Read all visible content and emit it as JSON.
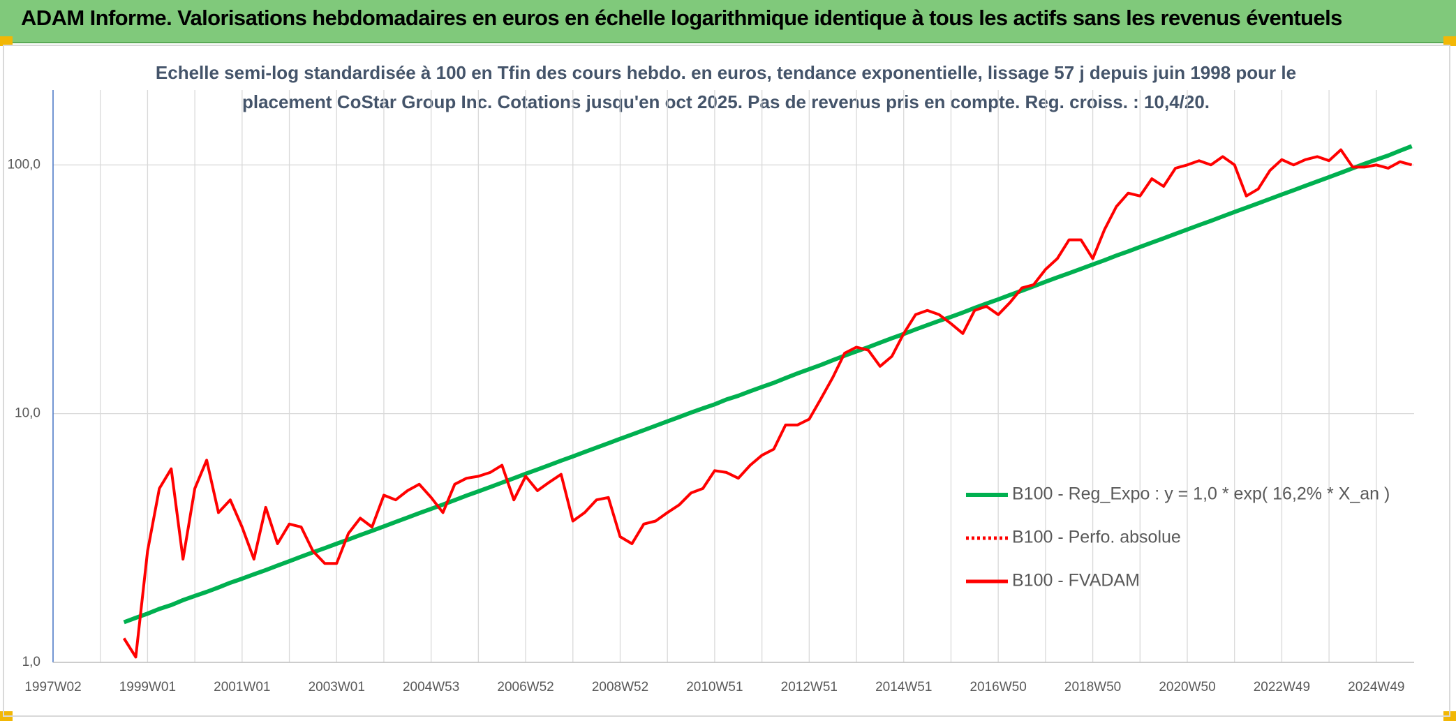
{
  "header": {
    "title": "ADAM Informe. Valorisations hebdomadaires en euros en échelle logarithmique identique à tous les actifs sans les revenus éventuels"
  },
  "chart_data": {
    "type": "line",
    "title": [
      "Echelle semi-log standardisée à 100 en Tfin des cours hebdo. en euros, tendance exponentielle, lissage 57 j depuis juin 1998 pour le",
      "placement CoStar Group Inc. Cotations jusqu'en oct 2025. Pas de revenus pris en compte. Reg. croiss. : 10,4/20."
    ],
    "log_y": true,
    "grid": true,
    "legend": "right",
    "ylim": [
      1,
      200
    ],
    "yticks": [
      {
        "value": 1,
        "label": "1,0"
      },
      {
        "value": 10,
        "label": "10,0"
      },
      {
        "value": 100,
        "label": "100,0"
      }
    ],
    "categories": [
      "1997W02",
      null,
      null,
      null,
      null,
      null,
      null,
      null,
      "1999W01",
      null,
      null,
      null,
      null,
      null,
      null,
      null,
      "2001W01",
      null,
      null,
      null,
      null,
      null,
      null,
      null,
      "2003W01",
      null,
      null,
      null,
      null,
      null,
      null,
      null,
      "2004W53",
      null,
      null,
      null,
      null,
      null,
      null,
      null,
      "2006W52",
      null,
      null,
      null,
      null,
      null,
      null,
      null,
      "2008W52",
      null,
      null,
      null,
      null,
      null,
      null,
      null,
      "2010W51",
      null,
      null,
      null,
      null,
      null,
      null,
      null,
      "2012W51",
      null,
      null,
      null,
      null,
      null,
      null,
      null,
      "2014W51",
      null,
      null,
      null,
      null,
      null,
      null,
      null,
      "2016W50",
      null,
      null,
      null,
      null,
      null,
      null,
      null,
      "2018W50",
      null,
      null,
      null,
      null,
      null,
      null,
      null,
      "2020W50",
      null,
      null,
      null,
      null,
      null,
      null,
      null,
      "2022W49",
      null,
      null,
      null,
      null,
      null,
      null,
      null,
      "2024W49",
      null,
      null,
      null
    ],
    "series": [
      {
        "name": "B100 - Reg_Expo : y = 1,0 * exp( 16,2% *  X_an )",
        "color": "#00b050",
        "style": "solid",
        "values": [
          null,
          null,
          null,
          null,
          null,
          null,
          1.45,
          1.51,
          1.57,
          1.64,
          1.7,
          1.78,
          1.85,
          1.92,
          2.0,
          2.09,
          2.17,
          2.26,
          2.35,
          2.45,
          2.55,
          2.66,
          2.77,
          2.88,
          3.0,
          3.12,
          3.25,
          3.38,
          3.52,
          3.67,
          3.82,
          3.98,
          4.14,
          4.31,
          4.49,
          4.68,
          4.87,
          5.07,
          5.28,
          5.5,
          5.73,
          5.96,
          6.21,
          6.47,
          6.73,
          7.01,
          7.3,
          7.6,
          7.92,
          8.24,
          8.58,
          8.94,
          9.31,
          9.69,
          10.1,
          10.5,
          10.9,
          11.4,
          11.8,
          12.3,
          12.8,
          13.3,
          13.9,
          14.5,
          15.1,
          15.7,
          16.4,
          17.1,
          17.8,
          18.5,
          19.3,
          20.1,
          20.9,
          21.8,
          22.7,
          23.6,
          24.5,
          25.5,
          26.6,
          27.7,
          28.8,
          30.0,
          31.2,
          32.5,
          33.9,
          35.3,
          36.7,
          38.2,
          39.8,
          41.4,
          43.2,
          44.9,
          46.8,
          48.7,
          50.7,
          52.8,
          55.0,
          57.3,
          59.6,
          62.1,
          64.7,
          67.3,
          70.1,
          73.0,
          76.0,
          79.1,
          82.4,
          85.8,
          89.3,
          93.0,
          96.9,
          101,
          105,
          109,
          114,
          119
        ]
      },
      {
        "name": "B100 - Perfo. absolue",
        "color": "#ff0000",
        "style": "dotted",
        "values": [
          null,
          null,
          null,
          null,
          null,
          null,
          null,
          null,
          null,
          null,
          null,
          null,
          null,
          null,
          null,
          null,
          null,
          null,
          null,
          null,
          null,
          null,
          null,
          null,
          null,
          null,
          null,
          null,
          null,
          null,
          null,
          null,
          null,
          null,
          null,
          null,
          null,
          null,
          null,
          null,
          null,
          null,
          null,
          null,
          null,
          null,
          null,
          null,
          null,
          null,
          null,
          null,
          null,
          null,
          null,
          null,
          null,
          null,
          null,
          null,
          null,
          null,
          null,
          null,
          null,
          null,
          null,
          null,
          null,
          null,
          null,
          null,
          null,
          null,
          null,
          null,
          null,
          null,
          null,
          null,
          null,
          null,
          null,
          null,
          null,
          null,
          null,
          null,
          null,
          null,
          null,
          null,
          null,
          null,
          null,
          null,
          null,
          null,
          null,
          null,
          null,
          null,
          null,
          null,
          null,
          null,
          null,
          null,
          null,
          null,
          null,
          null,
          null,
          null,
          null,
          null
        ]
      },
      {
        "name": "B100 - FVADAM",
        "color": "#ff0000",
        "style": "solid",
        "values": [
          null,
          null,
          null,
          null,
          null,
          null,
          1.25,
          1.05,
          2.8,
          5.0,
          6.0,
          2.6,
          5.0,
          6.5,
          4.0,
          4.5,
          3.5,
          2.6,
          4.2,
          3.0,
          3.6,
          3.5,
          2.8,
          2.5,
          2.5,
          3.3,
          3.8,
          3.5,
          4.7,
          4.5,
          4.9,
          5.2,
          4.6,
          4.0,
          5.2,
          5.5,
          5.6,
          5.8,
          6.2,
          4.5,
          5.6,
          4.9,
          5.3,
          5.7,
          3.7,
          4.0,
          4.5,
          4.6,
          3.2,
          3.0,
          3.6,
          3.7,
          4.0,
          4.3,
          4.8,
          5.0,
          5.9,
          5.8,
          5.5,
          6.2,
          6.8,
          7.2,
          9.0,
          9.0,
          9.5,
          11.5,
          14,
          17.5,
          18.5,
          18,
          15.5,
          17,
          21,
          25,
          26,
          25,
          23,
          21,
          26,
          27,
          25,
          28,
          32,
          33,
          38,
          42,
          50,
          50,
          42,
          55,
          68,
          77,
          75,
          88,
          82,
          97,
          100,
          104,
          100,
          108,
          100,
          75,
          80,
          95,
          105,
          100,
          105,
          108,
          104,
          115,
          98,
          98,
          100,
          97,
          103,
          100
        ]
      }
    ]
  }
}
